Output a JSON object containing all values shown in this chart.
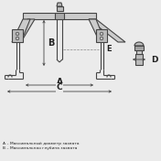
{
  "bg_color": "#ebebeb",
  "line_color": "#444444",
  "text_color": "#222222",
  "label_A": "A",
  "label_B": "B",
  "label_C": "C",
  "label_D": "D",
  "label_E": "E",
  "note_A": "A – Максимальный диаметр захвата",
  "note_B": "B – Максимальная глубина захвата",
  "figsize": [
    1.76,
    1.76
  ],
  "dpi": 100
}
